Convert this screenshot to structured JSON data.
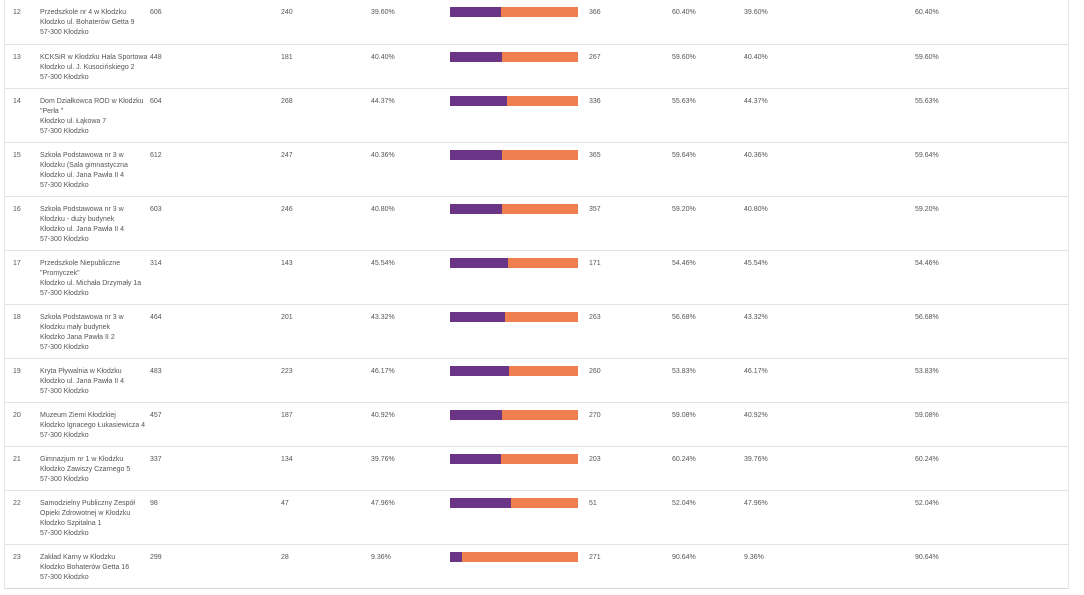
{
  "colors": {
    "candidate_a_bar": "#6a3487",
    "candidate_b_bar": "#f07f4f",
    "row_border": "#e3e3e3"
  },
  "rows": [
    {
      "num": "12",
      "name_lines": [
        "Przedszkole nr 4 w Kłodzku",
        "Kłodzko ul. Bohaterów Getta 9",
        "57-300 Kłodzko"
      ],
      "eligible": "606",
      "valid": "240",
      "pct_a": "39.60%",
      "share_a": 0.396,
      "votes_b": "366",
      "pct_b": "60.40%",
      "pct_c": "39.60%",
      "pct_d": "60.40%"
    },
    {
      "num": "13",
      "name_lines": [
        "KCKSiR w Kłodzku Hala Sportowa",
        "Kłodzko ul. J. Kusocińskiego 2",
        "57-300 Kłodzko"
      ],
      "eligible": "448",
      "valid": "181",
      "pct_a": "40.40%",
      "share_a": 0.404,
      "votes_b": "267",
      "pct_b": "59.60%",
      "pct_c": "40.40%",
      "pct_d": "59.60%"
    },
    {
      "num": "14",
      "name_lines": [
        "Dom Działkowca ROD w Kłodzku",
        "\"Perła \"",
        "Kłodzko ul. Łąkowa 7",
        "57-300 Kłodzko"
      ],
      "eligible": "604",
      "valid": "268",
      "pct_a": "44.37%",
      "share_a": 0.4437,
      "votes_b": "336",
      "pct_b": "55.63%",
      "pct_c": "44.37%",
      "pct_d": "55.63%"
    },
    {
      "num": "15",
      "name_lines": [
        "Szkoła Podstawowa nr 3 w",
        "Kłodzku (Sala gimnastyczna",
        "Kłodzko ul. Jana Pawła II 4",
        "57-300 Kłodzko"
      ],
      "eligible": "612",
      "valid": "247",
      "pct_a": "40.36%",
      "share_a": 0.4036,
      "votes_b": "365",
      "pct_b": "59.64%",
      "pct_c": "40.36%",
      "pct_d": "59.64%"
    },
    {
      "num": "16",
      "name_lines": [
        "Szkoła Podstawowa nr 3 w",
        "Kłodzku - duży budynek",
        "Kłodzko ul. Jana Pawła II 4",
        "57-300 Kłodzko"
      ],
      "eligible": "603",
      "valid": "246",
      "pct_a": "40.80%",
      "share_a": 0.408,
      "votes_b": "357",
      "pct_b": "59.20%",
      "pct_c": "40.80%",
      "pct_d": "59.20%"
    },
    {
      "num": "17",
      "name_lines": [
        "Przedszkole Niepubliczne",
        "\"Promyczek\"",
        "Kłodzko ul. Michała Drzymały 1a",
        "57-300 Kłodzko"
      ],
      "eligible": "314",
      "valid": "143",
      "pct_a": "45.54%",
      "share_a": 0.4554,
      "votes_b": "171",
      "pct_b": "54.46%",
      "pct_c": "45.54%",
      "pct_d": "54.46%"
    },
    {
      "num": "18",
      "name_lines": [
        "Szkoła Podstawowa nr 3 w",
        "Kłodzku mały budynek",
        "Kłodzko Jana Pawła II 2",
        "57-300 Kłodzko"
      ],
      "eligible": "464",
      "valid": "201",
      "pct_a": "43.32%",
      "share_a": 0.4332,
      "votes_b": "263",
      "pct_b": "56.68%",
      "pct_c": "43.32%",
      "pct_d": "56.68%"
    },
    {
      "num": "19",
      "name_lines": [
        "Kryta Pływalnia w Kłodzku",
        "Kłodzko ul. Jana Pawła II 4",
        "57-300 Kłodzko"
      ],
      "eligible": "483",
      "valid": "223",
      "pct_a": "46.17%",
      "share_a": 0.4617,
      "votes_b": "260",
      "pct_b": "53.83%",
      "pct_c": "46.17%",
      "pct_d": "53.83%"
    },
    {
      "num": "20",
      "name_lines": [
        "Muzeum Ziemi Kłodzkiej",
        "Kłodzko Ignacego Łukasiewicza 4",
        "57-300 Kłodzko"
      ],
      "eligible": "457",
      "valid": "187",
      "pct_a": "40.92%",
      "share_a": 0.4092,
      "votes_b": "270",
      "pct_b": "59.08%",
      "pct_c": "40.92%",
      "pct_d": "59.08%"
    },
    {
      "num": "21",
      "name_lines": [
        "Gimnazjum nr 1 w Kłodzku",
        "Kłodzko Zawiszy Czarnego 5",
        "57-300 Kłodzko"
      ],
      "eligible": "337",
      "valid": "134",
      "pct_a": "39.76%",
      "share_a": 0.3976,
      "votes_b": "203",
      "pct_b": "60.24%",
      "pct_c": "39.76%",
      "pct_d": "60.24%"
    },
    {
      "num": "22",
      "name_lines": [
        "Samodzielny Publiczny Zespół",
        "Opieki Zdrowotnej w Kłodzku",
        "Kłodzko Szpitalna 1",
        "57-300 Kłodzko"
      ],
      "eligible": "98",
      "valid": "47",
      "pct_a": "47.96%",
      "share_a": 0.4796,
      "votes_b": "51",
      "pct_b": "52.04%",
      "pct_c": "47.96%",
      "pct_d": "52.04%"
    },
    {
      "num": "23",
      "name_lines": [
        "Zakład Karny w Kłodzku",
        "Kłodzko Bohaterów Getta 16",
        "57-300 Kłodzko"
      ],
      "eligible": "299",
      "valid": "28",
      "pct_a": "9.36%",
      "share_a": 0.0936,
      "votes_b": "271",
      "pct_b": "90.64%",
      "pct_c": "9.36%",
      "pct_d": "90.64%"
    }
  ]
}
